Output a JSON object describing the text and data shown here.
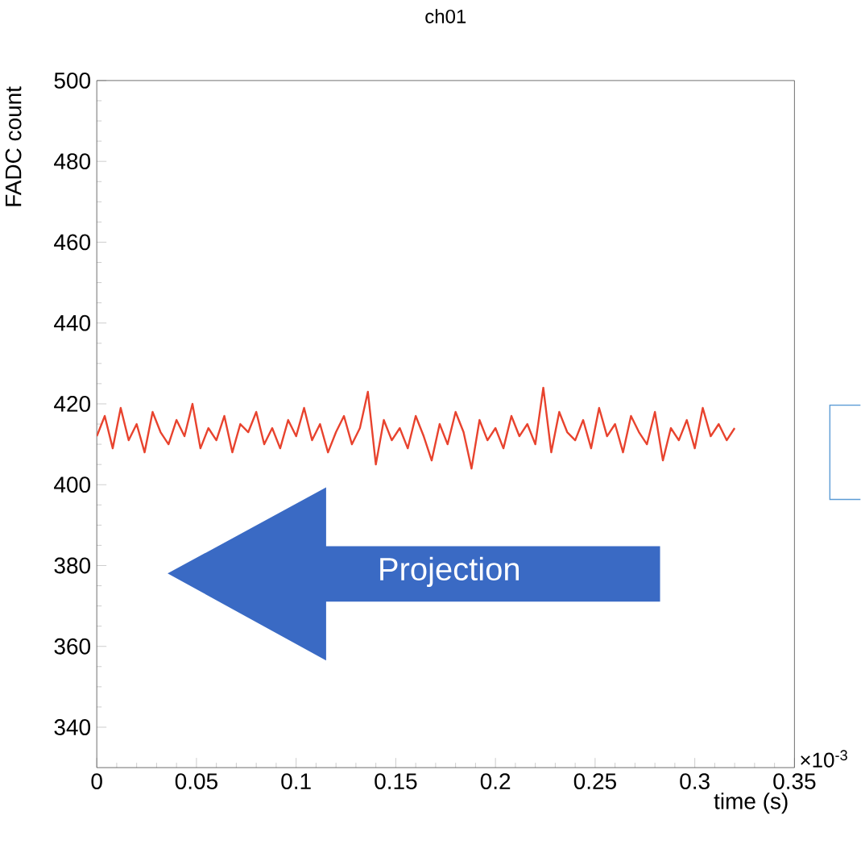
{
  "chart_data": {
    "type": "line",
    "title": "ch01",
    "xlabel": "time (s)",
    "ylabel": "FADC count",
    "annotations": [
      "Projection",
      "×10$^{-3}$"
    ],
    "x": [
      0,
      0.004,
      0.008,
      0.012,
      0.016,
      0.02,
      0.024,
      0.028,
      0.032,
      0.036,
      0.04,
      0.044,
      0.048,
      0.052,
      0.056,
      0.06,
      0.064,
      0.068,
      0.072,
      0.076,
      0.08,
      0.084,
      0.088,
      0.092,
      0.096,
      0.1,
      0.104,
      0.108,
      0.112,
      0.116,
      0.12,
      0.124,
      0.128,
      0.132,
      0.136,
      0.14,
      0.144,
      0.148,
      0.152,
      0.156,
      0.16,
      0.164,
      0.168,
      0.172,
      0.176,
      0.18,
      0.184,
      0.188,
      0.192,
      0.196,
      0.2,
      0.204,
      0.208,
      0.212,
      0.216,
      0.22,
      0.224,
      0.228,
      0.232,
      0.236,
      0.24,
      0.244,
      0.248,
      0.252,
      0.256,
      0.26,
      0.264,
      0.268,
      0.272,
      0.276,
      0.28,
      0.284,
      0.288,
      0.292,
      0.296,
      0.3,
      0.304,
      0.308,
      0.312,
      0.316,
      0.32
    ],
    "series": [
      {
        "color": "#e8432e",
        "values": [
          412,
          417,
          409,
          419,
          411,
          415,
          408,
          418,
          413,
          410,
          416,
          412,
          420,
          409,
          414,
          411,
          417,
          408,
          415,
          413,
          418,
          410,
          414,
          409,
          416,
          412,
          419,
          411,
          415,
          408,
          413,
          417,
          410,
          414,
          423,
          405,
          416,
          411,
          414,
          409,
          417,
          412,
          406,
          415,
          410,
          418,
          413,
          404,
          416,
          411,
          414,
          409,
          417,
          412,
          415,
          410,
          424,
          408,
          418,
          413,
          411,
          416,
          409,
          419,
          412,
          415,
          408,
          417,
          413,
          410,
          418,
          406,
          414,
          411,
          416,
          409,
          419,
          412,
          415,
          411,
          414
        ]
      }
    ],
    "xlim": [
      0,
      0.35
    ],
    "ylim": [
      330,
      500
    ],
    "xticks": [
      0,
      0.05,
      0.1,
      0.15,
      0.2,
      0.25,
      0.3,
      0.35
    ],
    "yticks": [
      340,
      360,
      380,
      400,
      420,
      440,
      460,
      480,
      500
    ]
  }
}
